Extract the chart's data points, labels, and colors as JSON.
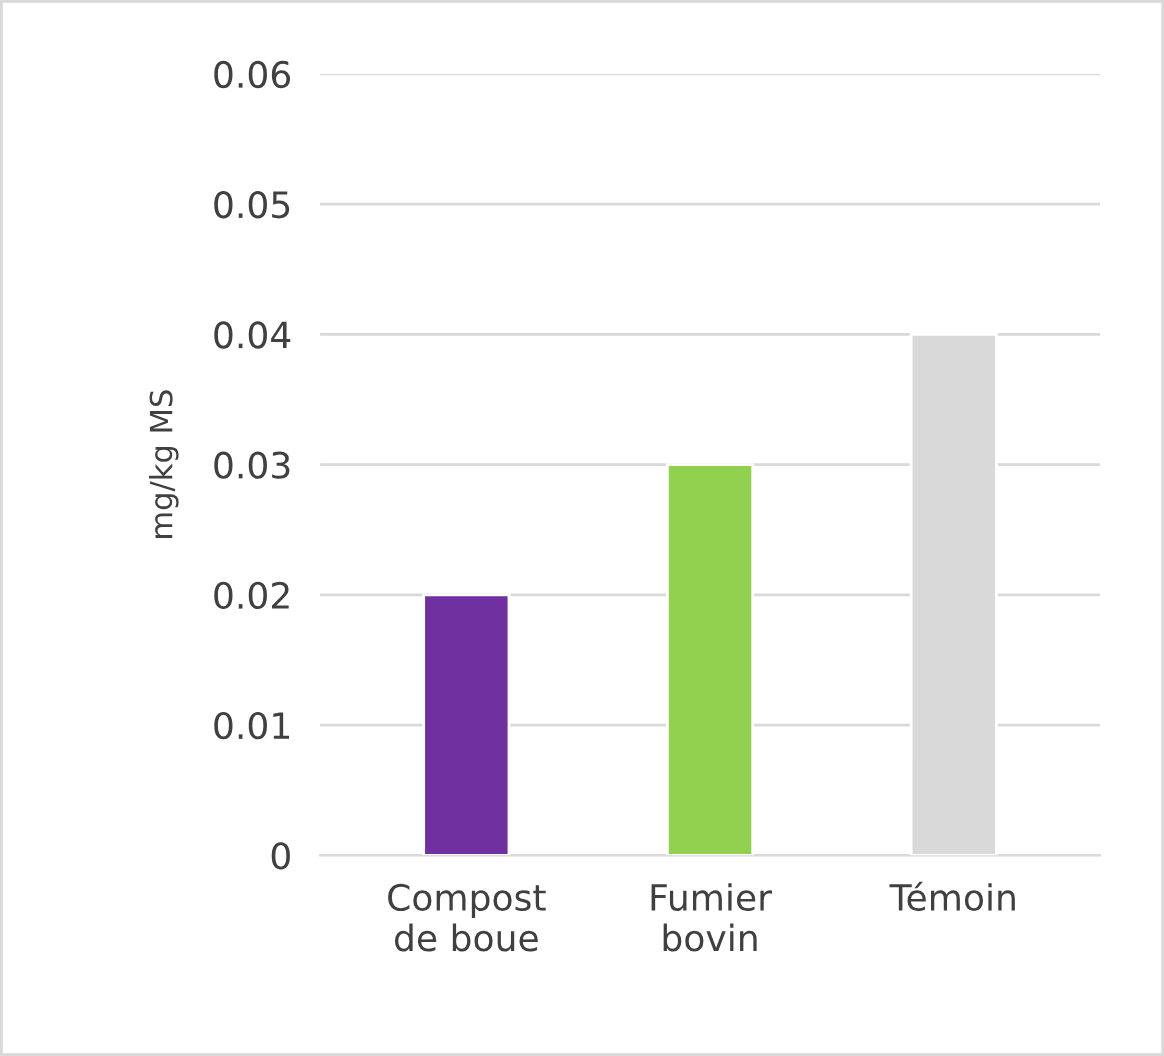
{
  "chart_data": {
    "type": "bar",
    "ylabel": "mg/kg MS",
    "categories": [
      "Compost\nde boue",
      "Fumier\nbovin",
      "Témoin"
    ],
    "values": [
      0.02,
      0.03,
      0.04
    ],
    "colors": [
      "#7030a0",
      "#92d050",
      "#d9d9d9"
    ],
    "ylim": [
      0,
      0.06
    ],
    "yticks": [
      0,
      0.01,
      0.02,
      0.03,
      0.04,
      0.05,
      0.06
    ],
    "grid": "y",
    "legend": false
  }
}
